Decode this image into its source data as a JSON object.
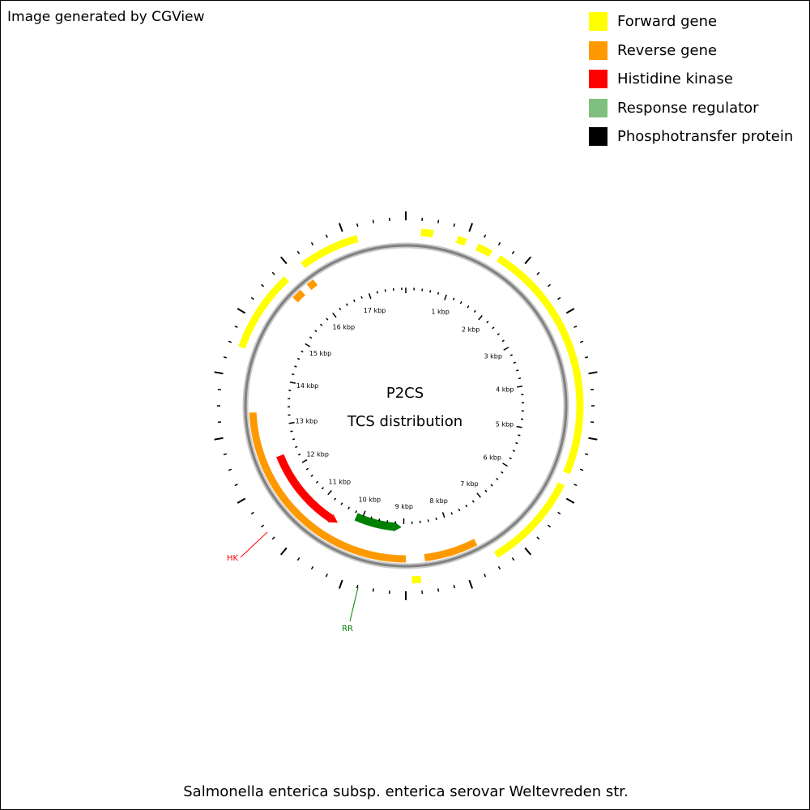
{
  "credit": "Image generated by CGView",
  "caption": "Salmonella enterica subsp. enterica serovar Weltevreden str.",
  "center_title": "P2CS",
  "center_subtitle": "TCS distribution",
  "legend": [
    {
      "label": "Forward gene",
      "color": "#ffff00"
    },
    {
      "label": "Reverse gene",
      "color": "#ff9900"
    },
    {
      "label": "Histidine kinase",
      "color": "#ff0000"
    },
    {
      "label": "Response regulator",
      "color": "#7fbf7f"
    },
    {
      "label": "Phosphotransfer protein",
      "color": "#000000"
    }
  ],
  "map": {
    "sequence_length_kbp": 17.9,
    "backbone_color": "#808080",
    "tick_labels": [
      "1 kbp",
      "2 kbp",
      "3 kbp",
      "4 kbp",
      "5 kbp",
      "6 kbp",
      "7 kbp",
      "8 kbp",
      "9 kbp",
      "10 kbp",
      "11 kbp",
      "12 kbp",
      "13 kbp",
      "14 kbp",
      "15 kbp",
      "16 kbp",
      "17 kbp"
    ],
    "forward_genes_kbp": [
      [
        0.25,
        0.45
      ],
      [
        0.85,
        1.0
      ],
      [
        1.2,
        1.45
      ],
      [
        1.6,
        5.6
      ],
      [
        5.8,
        7.4
      ],
      [
        8.7,
        8.85
      ],
      [
        14.4,
        15.75
      ],
      [
        16.1,
        17.1
      ]
    ],
    "reverse_genes_kbp": [
      [
        7.6,
        8.6
      ],
      [
        8.95,
        13.3
      ],
      [
        15.6,
        15.8
      ],
      [
        15.95,
        16.1
      ]
    ],
    "hk_genes_kbp": [
      [
        10.45,
        12.35
      ]
    ],
    "rr_genes_kbp": [
      [
        9.05,
        10.15
      ]
    ],
    "feature_labels": [
      {
        "text": "HK",
        "color": "#ff0000"
      },
      {
        "text": "RR",
        "color": "#008000"
      }
    ]
  }
}
